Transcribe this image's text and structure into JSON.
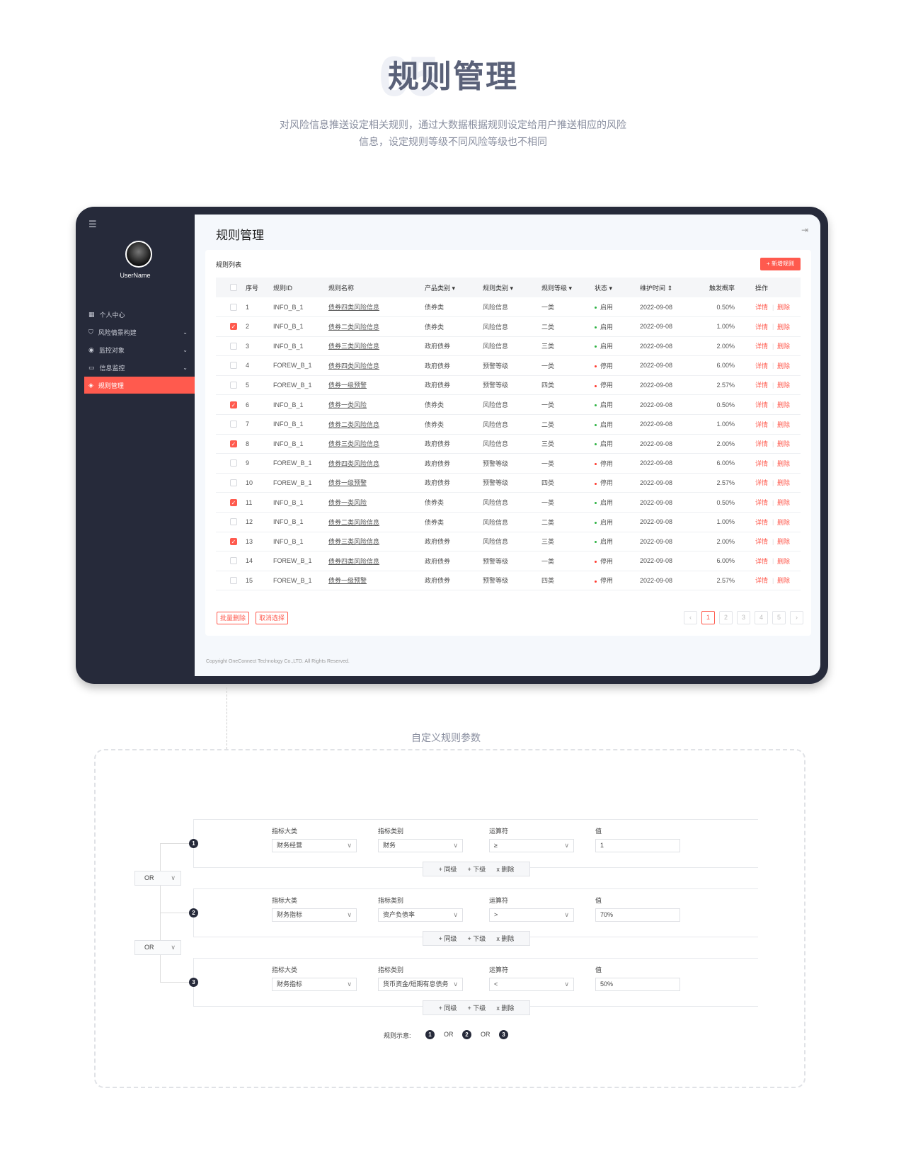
{
  "header": {
    "watermark": "05",
    "title": "规则管理",
    "subtitle_line1": "对风险信息推送设定相关规则，通过大数据根据规则设定给用户推送相应的风险",
    "subtitle_line2": "信息，设定规则等级不同风险等级也不相同"
  },
  "sidebar": {
    "username": "UserName",
    "items": [
      {
        "label": "个人中心",
        "icon": "dashboard-icon"
      },
      {
        "label": "风险情景构建",
        "icon": "shield-icon",
        "expandable": true
      },
      {
        "label": "监控对象",
        "icon": "eye-icon",
        "expandable": true
      },
      {
        "label": "信息监控",
        "icon": "monitor-icon",
        "expandable": true
      },
      {
        "label": "规则管理",
        "icon": "layers-icon",
        "active": true
      }
    ]
  },
  "page": {
    "title": "规则管理",
    "card_title": "规则列表",
    "add_button": "+ 新增规则",
    "copyright": "Copyright OneConnect Technology Co.,LTD. All Rights Reserved."
  },
  "table": {
    "columns": [
      "序号",
      "规则ID",
      "规则名称",
      "产品类别",
      "规则类别",
      "规则等级",
      "状态",
      "维护时间",
      "触发概率",
      "操作"
    ],
    "actions": [
      "详情",
      "删除"
    ],
    "rows": [
      {
        "checked": false,
        "no": "1",
        "id": "INFO_B_1",
        "name": "债券四类风险信息",
        "product": "债券类",
        "type": "风险信息",
        "level": "一类",
        "status": "启用",
        "time": "2022-09-08",
        "rate": "0.50%"
      },
      {
        "checked": true,
        "no": "2",
        "id": "INFO_B_1",
        "name": "债券二类风险信息",
        "product": "债券类",
        "type": "风险信息",
        "level": "二类",
        "status": "启用",
        "time": "2022-09-08",
        "rate": "1.00%"
      },
      {
        "checked": false,
        "no": "3",
        "id": "INFO_B_1",
        "name": "债券三类风险信息",
        "product": "政府债券",
        "type": "风险信息",
        "level": "三类",
        "status": "启用",
        "time": "2022-09-08",
        "rate": "2.00%"
      },
      {
        "checked": false,
        "no": "4",
        "id": "FOREW_B_1",
        "name": "债券四类风险信息",
        "product": "政府债券",
        "type": "预警等级",
        "level": "一类",
        "status": "停用",
        "time": "2022-09-08",
        "rate": "6.00%"
      },
      {
        "checked": false,
        "no": "5",
        "id": "FOREW_B_1",
        "name": "债券一级预警",
        "product": "政府债券",
        "type": "预警等级",
        "level": "四类",
        "status": "停用",
        "time": "2022-09-08",
        "rate": "2.57%"
      },
      {
        "checked": true,
        "no": "6",
        "id": "INFO_B_1",
        "name": "债券一类风险",
        "product": "债券类",
        "type": "风险信息",
        "level": "一类",
        "status": "启用",
        "time": "2022-09-08",
        "rate": "0.50%"
      },
      {
        "checked": false,
        "no": "7",
        "id": "INFO_B_1",
        "name": "债券二类风险信息",
        "product": "债券类",
        "type": "风险信息",
        "level": "二类",
        "status": "启用",
        "time": "2022-09-08",
        "rate": "1.00%"
      },
      {
        "checked": true,
        "no": "8",
        "id": "INFO_B_1",
        "name": "债券三类风险信息",
        "product": "政府债券",
        "type": "风险信息",
        "level": "三类",
        "status": "启用",
        "time": "2022-09-08",
        "rate": "2.00%"
      },
      {
        "checked": false,
        "no": "9",
        "id": "FOREW_B_1",
        "name": "债券四类风险信息",
        "product": "政府债券",
        "type": "预警等级",
        "level": "一类",
        "status": "停用",
        "time": "2022-09-08",
        "rate": "6.00%"
      },
      {
        "checked": false,
        "no": "10",
        "id": "FOREW_B_1",
        "name": "债券一级预警",
        "product": "政府债券",
        "type": "预警等级",
        "level": "四类",
        "status": "停用",
        "time": "2022-09-08",
        "rate": "2.57%"
      },
      {
        "checked": true,
        "no": "11",
        "id": "INFO_B_1",
        "name": "债券一类风险",
        "product": "债券类",
        "type": "风险信息",
        "level": "一类",
        "status": "启用",
        "time": "2022-09-08",
        "rate": "0.50%"
      },
      {
        "checked": false,
        "no": "12",
        "id": "INFO_B_1",
        "name": "债券二类风险信息",
        "product": "债券类",
        "type": "风险信息",
        "level": "二类",
        "status": "启用",
        "time": "2022-09-08",
        "rate": "1.00%"
      },
      {
        "checked": true,
        "no": "13",
        "id": "INFO_B_1",
        "name": "债券三类风险信息",
        "product": "政府债券",
        "type": "风险信息",
        "level": "三类",
        "status": "启用",
        "time": "2022-09-08",
        "rate": "2.00%"
      },
      {
        "checked": false,
        "no": "14",
        "id": "FOREW_B_1",
        "name": "债券四类风险信息",
        "product": "政府债券",
        "type": "预警等级",
        "level": "一类",
        "status": "停用",
        "time": "2022-09-08",
        "rate": "6.00%"
      },
      {
        "checked": false,
        "no": "15",
        "id": "FOREW_B_1",
        "name": "债券一级预警",
        "product": "政府债券",
        "type": "预警等级",
        "level": "四类",
        "status": "停用",
        "time": "2022-09-08",
        "rate": "2.57%"
      }
    ]
  },
  "footer_buttons": {
    "batch_delete": "批量删除",
    "cancel_select": "取消选择"
  },
  "pagination": {
    "pages": [
      "1",
      "2",
      "3",
      "4",
      "5"
    ],
    "current": "1",
    "prev": "‹",
    "next": "›"
  },
  "colors": {
    "accent": "#ff5a4e",
    "sidebar": "#262a3a",
    "enabled": "#2fb344",
    "disabled": "#ff3b30"
  },
  "rules": {
    "section_title": "自定义规则参数",
    "labels": [
      "指标大类",
      "指标类别",
      "运算符",
      "值"
    ],
    "ops": [
      "+ 同级",
      "+ 下级",
      "x 删除"
    ],
    "blocks": [
      {
        "num": "1",
        "category": "财务经营",
        "type": "财务",
        "operator": "≥",
        "value": "1"
      },
      {
        "num": "2",
        "category": "财务指标",
        "type": "资产负债率",
        "operator": ">",
        "value": "70%"
      },
      {
        "num": "3",
        "category": "财务指标",
        "type": "货币资金/短期有息债务",
        "operator": "<",
        "value": "50%"
      }
    ],
    "connectors": [
      "OR",
      "OR"
    ],
    "legend": {
      "label": "规则示意:",
      "items": [
        "1",
        "OR",
        "2",
        "OR",
        "3"
      ]
    }
  }
}
